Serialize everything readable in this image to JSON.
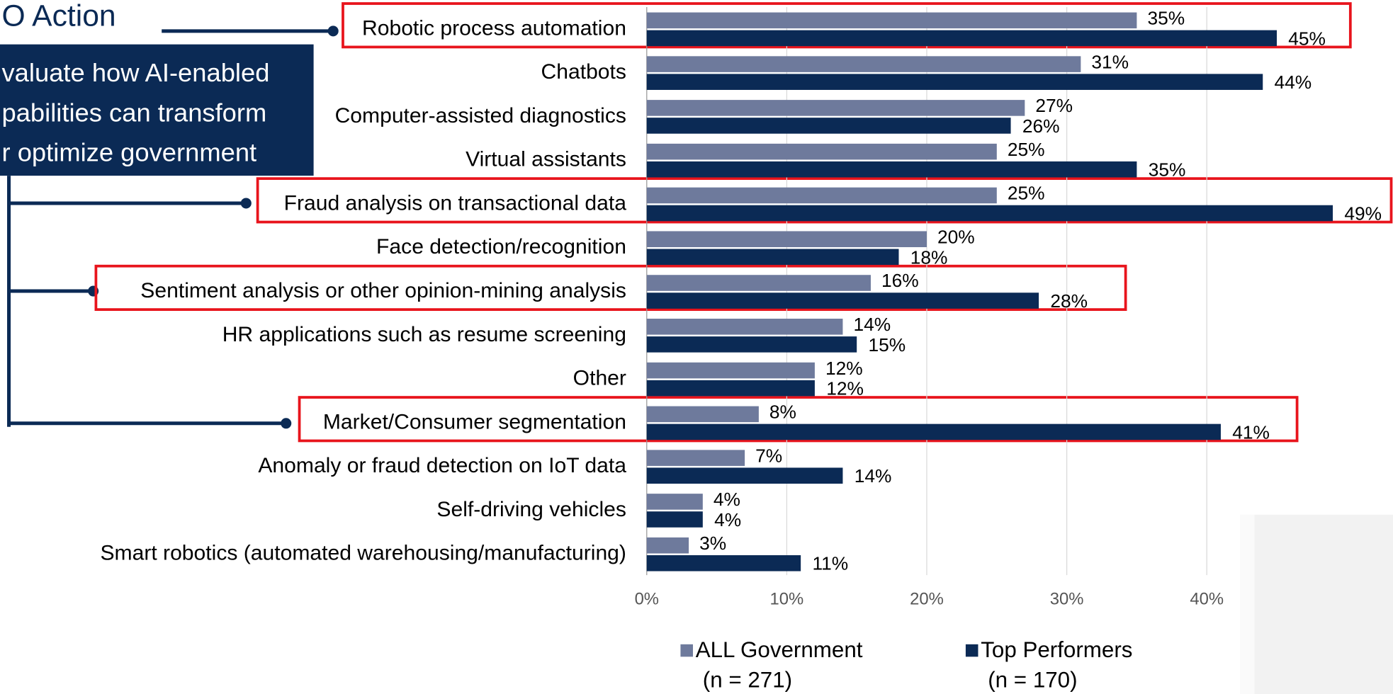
{
  "slide": {
    "title": "O Action",
    "callout": [
      "valuate how AI-enabled",
      "pabilities can transform",
      "r optimize government"
    ]
  },
  "chart_data": {
    "type": "barh",
    "categories": [
      "Robotic process automation",
      "Chatbots",
      "Computer-assisted diagnostics",
      "Virtual assistants",
      "Fraud analysis on transactional data",
      "Face detection/recognition",
      "Sentiment analysis or other opinion-mining analysis",
      "HR applications such as resume screening",
      "Other",
      "Market/Consumer segmentation",
      "Anomaly or fraud detection on IoT data",
      "Self-driving vehicles",
      "Smart robotics (automated warehousing/manufacturing)"
    ],
    "series": [
      {
        "name": "ALL Government",
        "sample": "(n = 271)",
        "color": "#6e7a9c",
        "values": [
          35,
          31,
          27,
          25,
          25,
          20,
          16,
          14,
          12,
          8,
          7,
          4,
          3
        ],
        "value_labels": [
          "35%",
          "31%",
          "27%",
          "25%",
          "25%",
          "20%",
          "16%",
          "14%",
          "12%",
          "8%",
          "7%",
          "4%",
          "3%"
        ]
      },
      {
        "name": "Top Performers",
        "sample": "(n = 170)",
        "color": "#0b2a55",
        "values": [
          45,
          44,
          26,
          35,
          49,
          18,
          28,
          15,
          12,
          41,
          14,
          4,
          11
        ],
        "value_labels": [
          "45%",
          "44%",
          "26%",
          "35%",
          "49%",
          "18%",
          "28%",
          "15%",
          "12%",
          "41%",
          "14%",
          "4%",
          "11%"
        ]
      }
    ],
    "xlim": [
      0,
      50
    ],
    "xticks": [
      {
        "value": 0,
        "label": "0%"
      },
      {
        "value": 10,
        "label": "10%"
      },
      {
        "value": 20,
        "label": "20%"
      },
      {
        "value": 30,
        "label": "30%"
      },
      {
        "value": 40,
        "label": "40%"
      }
    ],
    "grid": true
  }
}
